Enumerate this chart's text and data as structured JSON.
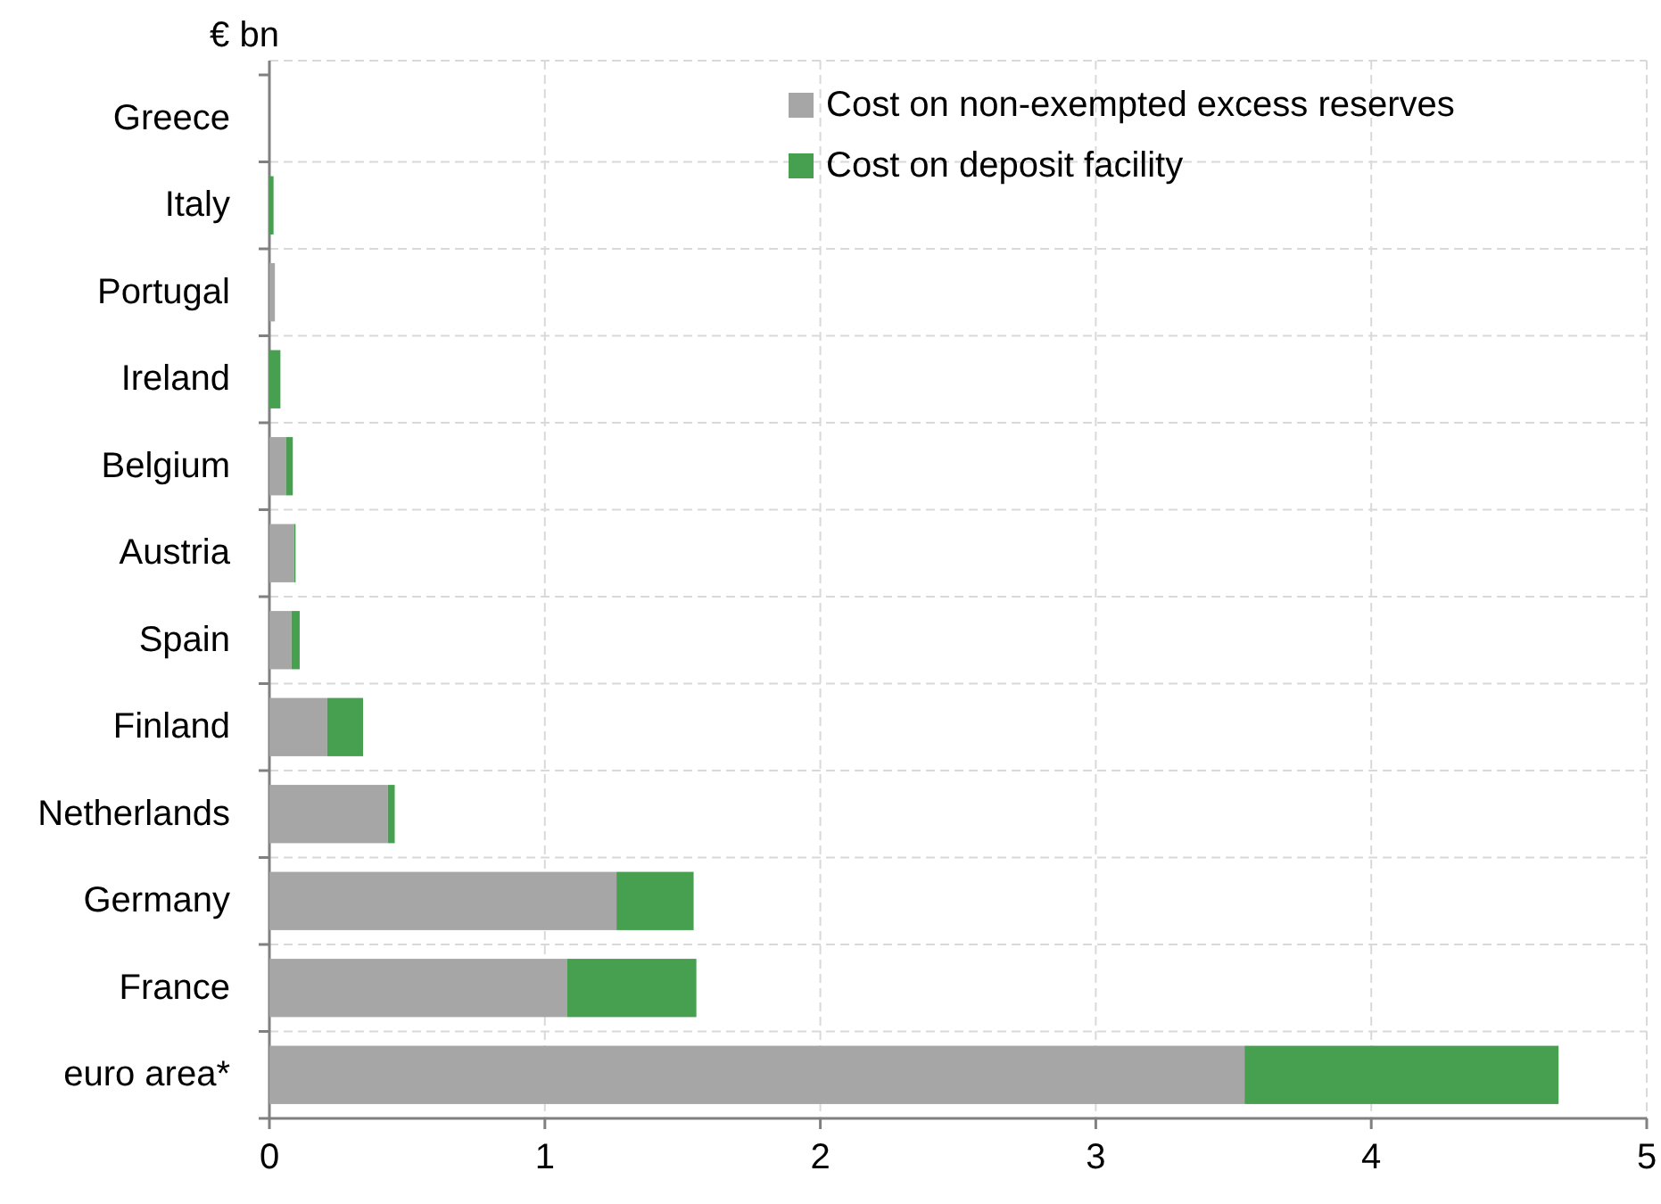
{
  "chart_data": {
    "type": "bar",
    "orientation": "horizontal",
    "stacked": true,
    "ylabel": "€ bn",
    "categories": [
      "Greece",
      "Italy",
      "Portugal",
      "Ireland",
      "Belgium",
      "Austria",
      "Spain",
      "Finland",
      "Netherlands",
      "Germany",
      "France",
      "euro area*"
    ],
    "series": [
      {
        "name": "Cost on non-exempted excess reserves",
        "color": "#a6a6a6",
        "values": [
          0,
          0,
          0.02,
          0,
          0.06,
          0.09,
          0.08,
          0.21,
          0.43,
          1.26,
          1.08,
          3.54
        ]
      },
      {
        "name": "Cost on deposit facility",
        "color": "#46a04f",
        "values": [
          0,
          0.015,
          0,
          0.04,
          0.025,
          0.005,
          0.03,
          0.13,
          0.025,
          0.28,
          0.47,
          1.14
        ]
      }
    ],
    "xlim": [
      0,
      5
    ],
    "xticks": [
      0,
      1,
      2,
      3,
      4,
      5
    ],
    "grid": true,
    "legend": "top right"
  }
}
